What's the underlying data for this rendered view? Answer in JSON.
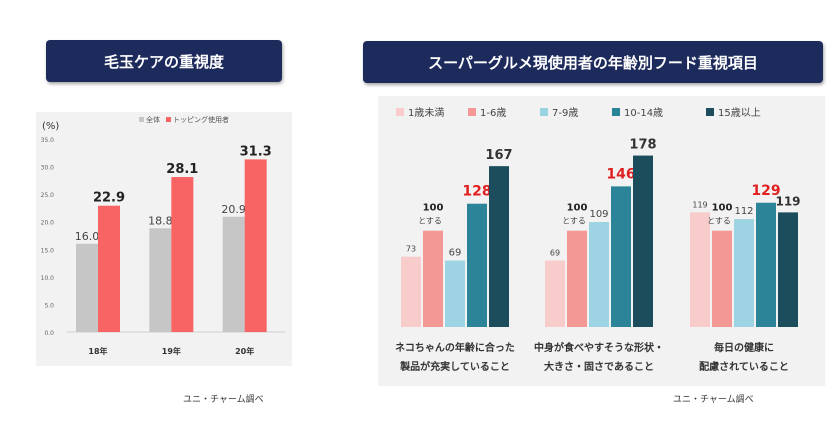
{
  "banners": {
    "left": "毛玉ケアの重視度",
    "right": "スーパーグルメ現使用者の年齢別フード重視項目"
  },
  "sources": {
    "left": "ユニ・チャーム調べ",
    "right": "ユニ・チャーム調べ"
  },
  "colors": {
    "banner_bg": "#1d2a5c",
    "panel_bg": "#f2f2f2",
    "highlight_red": "#e02020"
  },
  "chart_data": [
    {
      "type": "bar",
      "ylabel": "(%)",
      "ylim": [
        0,
        35
      ],
      "yticks": [
        "0.0",
        "5.0",
        "10.0",
        "15.0",
        "20.0",
        "25.0",
        "30.0",
        "35.0"
      ],
      "ytick_values": [
        0,
        5,
        10,
        15,
        20,
        25,
        30,
        35
      ],
      "categories": [
        "18年",
        "19年",
        "20年"
      ],
      "legend_position": "top",
      "series": [
        {
          "name": "全体",
          "color": "#c6c6c6",
          "values": [
            16.0,
            18.8,
            20.9
          ],
          "labels": [
            "16.0",
            "18.8",
            "20.9"
          ]
        },
        {
          "name": "トッピング使用者",
          "color": "#f86463",
          "values": [
            22.9,
            28.1,
            31.3
          ],
          "labels": [
            "22.9",
            "28.1",
            "31.3"
          ]
        }
      ],
      "grid": false
    },
    {
      "type": "bar",
      "ylim": [
        0,
        190
      ],
      "legend_position": "top",
      "categories": [
        [
          "ネコちゃんの年齢に合った",
          "製品が充実していること"
        ],
        [
          "中身が食べやすそうな形状・",
          "大きさ・固さであること"
        ],
        [
          "毎日の健康に",
          "配慮されていること"
        ]
      ],
      "series": [
        {
          "name": "1歳未満",
          "color": "#f9cccc",
          "values": [
            73,
            69,
            119
          ],
          "labels": [
            "73",
            "69",
            "119"
          ]
        },
        {
          "name": "1-6歳",
          "color": "#f49896",
          "values": [
            100,
            100,
            100
          ],
          "labels": [
            "100",
            "100",
            "100"
          ],
          "sublabel": "とする"
        },
        {
          "name": "7-9歳",
          "color": "#9dd3e2",
          "values": [
            69,
            109,
            112
          ],
          "labels": [
            "69",
            "109",
            "112"
          ]
        },
        {
          "name": "10-14歳",
          "color": "#2b8498",
          "values": [
            128,
            146,
            129
          ],
          "labels": [
            "128",
            "146",
            "129"
          ],
          "highlight": true
        },
        {
          "name": "15歳以上",
          "color": "#1c4d5c",
          "values": [
            167,
            178,
            119
          ],
          "labels": [
            "167",
            "178",
            "119"
          ]
        }
      ],
      "grid": false
    }
  ]
}
